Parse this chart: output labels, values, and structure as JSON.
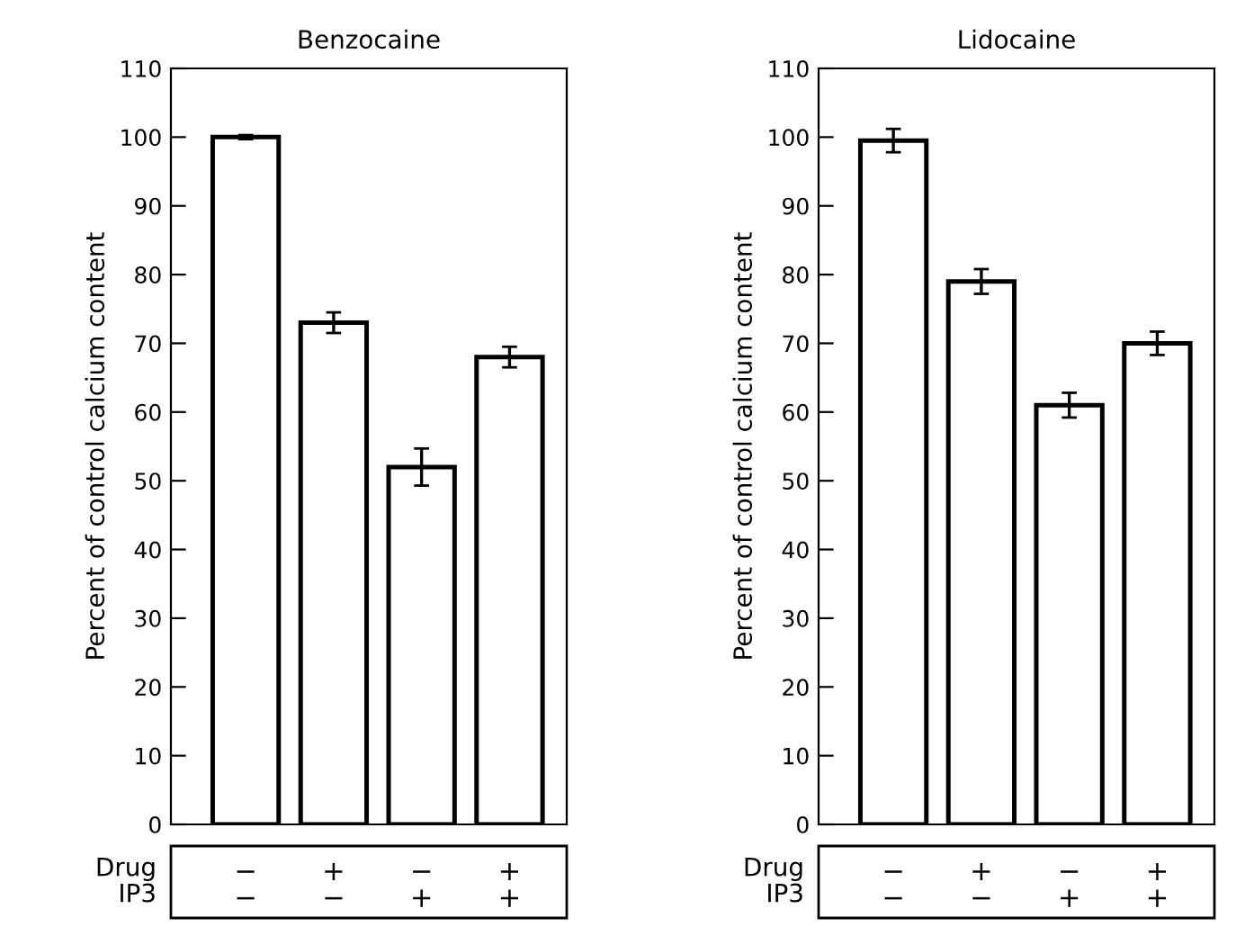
{
  "chart_data": [
    {
      "type": "bar",
      "title": "Benzocaine",
      "ylabel": "Percent of control calcium content",
      "categories": [
        "−\n−",
        "+\n−",
        "−\n+",
        "+\n+"
      ],
      "values": [
        100,
        73,
        52,
        68
      ],
      "errors": [
        0.3,
        1.5,
        2.7,
        1.5
      ],
      "color": "#ffffff",
      "ylim": [
        0,
        110
      ],
      "yticks": [
        0,
        10,
        20,
        30,
        40,
        50,
        60,
        70,
        80,
        90,
        100,
        110
      ],
      "grid": false,
      "annotations": [
        "Drug\nIP3"
      ]
    },
    {
      "type": "bar",
      "title": "Lidocaine",
      "ylabel": "Percent of control calcium content",
      "categories": [
        "−\n−",
        "+\n−",
        "−\n+",
        "+\n+"
      ],
      "values": [
        99.5,
        79,
        61,
        70
      ],
      "errors": [
        1.7,
        1.8,
        1.8,
        1.7
      ],
      "color": "#ffffff",
      "ylim": [
        0,
        110
      ],
      "yticks": [
        0,
        10,
        20,
        30,
        40,
        50,
        60,
        70,
        80,
        90,
        100,
        110
      ],
      "grid": false,
      "annotations": [
        "Drug\nIP3"
      ]
    }
  ]
}
